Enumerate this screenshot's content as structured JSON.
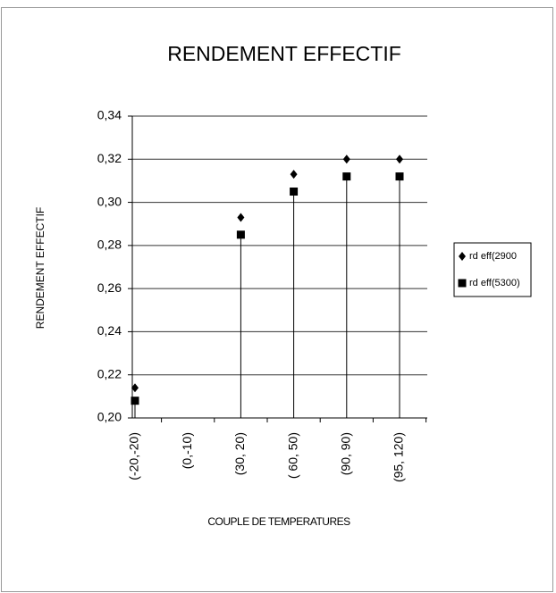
{
  "chart_data": {
    "type": "scatter",
    "title": "RENDEMENT EFFECTIF",
    "y_label": "RENDEMENT EFFECTIF",
    "x_label": "COUPLE DE TEMPERATURES",
    "categories": [
      "(-20,-20)",
      "(0,-10)",
      "(30, 20)",
      "( 60, 50)",
      "(90, 90)",
      "(95, 120)"
    ],
    "series": [
      {
        "name": "rd eff(2900",
        "color": "#000000",
        "marker": "diamond",
        "values": [
          0.214,
          null,
          0.293,
          0.313,
          0.32,
          0.32
        ]
      },
      {
        "name": "rd eff(5300)",
        "color": "#000000",
        "marker": "square",
        "values": [
          0.208,
          null,
          0.285,
          0.305,
          0.312,
          0.312
        ]
      }
    ],
    "ylim": [
      0.2,
      0.34
    ],
    "yticks": [
      {
        "value": 0.2,
        "label": "0,20"
      },
      {
        "value": 0.22,
        "label": "0,22"
      },
      {
        "value": 0.24,
        "label": "0,24"
      },
      {
        "value": 0.26,
        "label": "0,26"
      },
      {
        "value": 0.28,
        "label": "0,28"
      },
      {
        "value": 0.3,
        "label": "0,30"
      },
      {
        "value": 0.32,
        "label": "0,32"
      },
      {
        "value": 0.34,
        "label": "0,34"
      }
    ],
    "grid": true,
    "legend": "right"
  }
}
